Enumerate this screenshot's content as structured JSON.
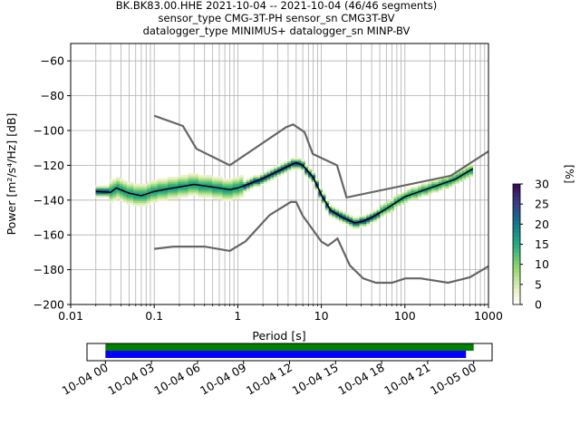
{
  "header": {
    "line1": "BK.BK83.00.HHE   2021-10-04 -- 2021-10-04  (46/46 segments)",
    "line2": "sensor_type CMG-3T-PH sensor_sn CMG3T-BV",
    "line3": "datalogger_type MINIMUS+ datalogger_sn MINP-BV"
  },
  "chart_data": [
    {
      "type": "heatmap",
      "xlabel": "Period [s]",
      "ylabel": "Power [m²/s⁴/Hz] [dB]",
      "xscale": "log",
      "xlim": [
        0.01,
        1000
      ],
      "ylim": [
        -200,
        -50
      ],
      "xtick_labels": [
        "0.01",
        "0.1",
        "1",
        "10",
        "100",
        "1000"
      ],
      "xticks": [
        0.01,
        0.1,
        1,
        10,
        100,
        1000
      ],
      "yticks": [
        -200,
        -180,
        -160,
        -140,
        -120,
        -100,
        -80,
        -60
      ],
      "grid": true,
      "colorbar": {
        "label": "[%]",
        "range": [
          0,
          30
        ],
        "ticks": [
          0,
          5,
          10,
          15,
          20,
          25,
          30
        ]
      },
      "noise_model_high": {
        "period": [
          0.1,
          0.22,
          0.32,
          0.8,
          3.8,
          4.6,
          6.3,
          7.9,
          15.4,
          20,
          354.8,
          1000
        ],
        "power": [
          -91.5,
          -97.4,
          -110.5,
          -120,
          -98,
          -96.5,
          -101,
          -113.5,
          -120,
          -138.5,
          -126,
          -112
        ]
      },
      "noise_model_low": {
        "period": [
          0.1,
          0.17,
          0.4,
          0.8,
          1.24,
          2.4,
          4.3,
          5,
          6,
          10,
          12,
          15.6,
          21.9,
          31.6,
          45,
          70,
          101,
          154,
          328,
          600,
          1000
        ],
        "power": [
          -168,
          -166.7,
          -166.7,
          -169.2,
          -163.7,
          -148.6,
          -141.1,
          -141.1,
          -149,
          -163.8,
          -166.2,
          -162.1,
          -177.5,
          -185,
          -187.5,
          -187.5,
          -185,
          -185,
          -187.5,
          -184.4,
          -178
        ]
      },
      "median": {
        "period": [
          0.02,
          0.03,
          0.035,
          0.05,
          0.07,
          0.1,
          0.15,
          0.3,
          0.5,
          0.8,
          1,
          1.5,
          2,
          3,
          4,
          5,
          6,
          8,
          10,
          13,
          18,
          25,
          30,
          40,
          60,
          100,
          200,
          400,
          650
        ],
        "power": [
          -135,
          -135.5,
          -133,
          -136,
          -137.5,
          -135,
          -133.5,
          -131,
          -132.5,
          -134,
          -133,
          -130,
          -127.5,
          -123.5,
          -120.5,
          -118.5,
          -120,
          -127,
          -137,
          -146,
          -150,
          -153,
          -152.5,
          -150,
          -145,
          -138,
          -133,
          -128,
          -122
        ]
      }
    },
    {
      "type": "timeline",
      "xtick_labels": [
        "10-04 00",
        "10-04 03",
        "10-04 06",
        "10-04 09",
        "10-04 12",
        "10-04 15",
        "10-04 18",
        "10-04 21",
        "10-05 00"
      ],
      "xlim_hours": [
        -1.2,
        25.2
      ],
      "bars": [
        {
          "color": "#008000",
          "start_hour": 0,
          "end_hour": 24.0
        },
        {
          "color": "#0000ff",
          "start_hour": 0,
          "end_hour": 23.5
        }
      ]
    }
  ]
}
